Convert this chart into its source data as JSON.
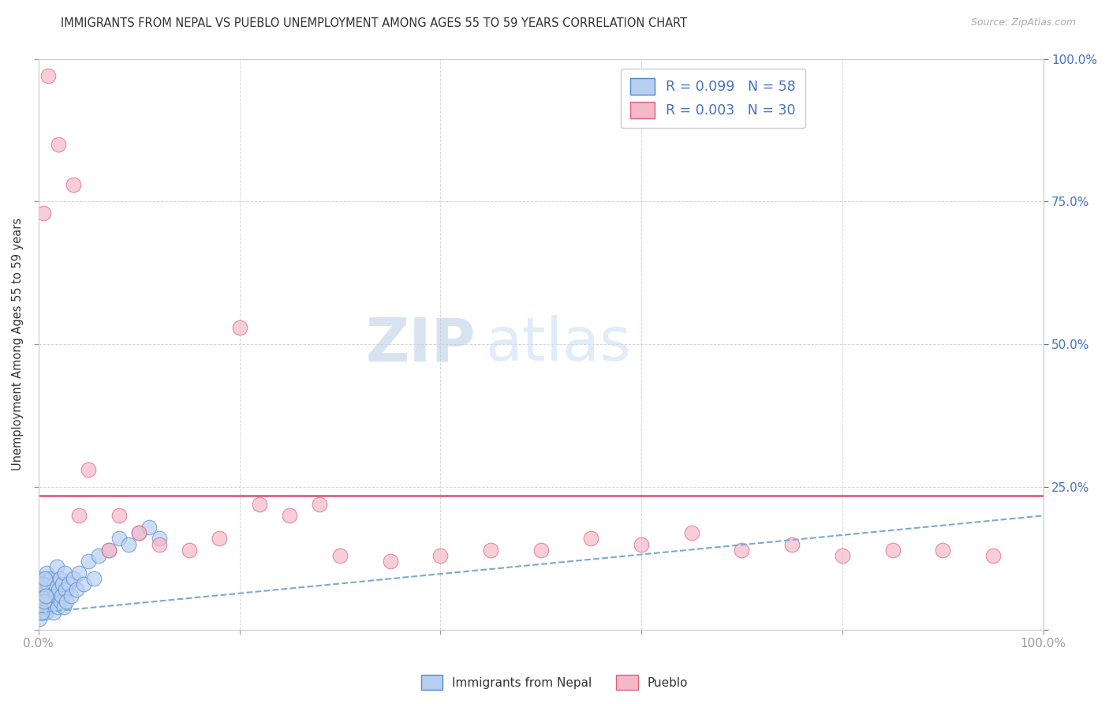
{
  "title": "IMMIGRANTS FROM NEPAL VS PUEBLO UNEMPLOYMENT AMONG AGES 55 TO 59 YEARS CORRELATION CHART",
  "source": "Source: ZipAtlas.com",
  "ylabel": "Unemployment Among Ages 55 to 59 years",
  "xlim": [
    0,
    100
  ],
  "ylim": [
    0,
    100
  ],
  "nepal_R": 0.099,
  "nepal_N": 58,
  "pueblo_R": 0.003,
  "pueblo_N": 30,
  "nepal_color": "#b8d0f0",
  "pueblo_color": "#f5b8c8",
  "nepal_edge_color": "#5588cc",
  "pueblo_edge_color": "#e06080",
  "trend_nepal_color": "#7aaad0",
  "trend_pueblo_color": "#e06080",
  "legend_text_color": "#4472c4",
  "nepal_scatter_x": [
    0.1,
    0.2,
    0.2,
    0.3,
    0.3,
    0.4,
    0.4,
    0.5,
    0.5,
    0.6,
    0.6,
    0.7,
    0.7,
    0.8,
    0.8,
    0.9,
    1.0,
    1.0,
    1.1,
    1.2,
    1.3,
    1.4,
    1.5,
    1.6,
    1.7,
    1.8,
    1.9,
    2.0,
    2.1,
    2.2,
    2.3,
    2.4,
    2.5,
    2.6,
    2.7,
    2.8,
    3.0,
    3.2,
    3.5,
    3.8,
    4.0,
    4.5,
    5.0,
    5.5,
    6.0,
    7.0,
    8.0,
    9.0,
    10.0,
    11.0,
    12.0,
    0.15,
    0.25,
    0.35,
    0.45,
    0.55,
    0.65,
    0.75
  ],
  "nepal_scatter_y": [
    2,
    3,
    5,
    4,
    7,
    6,
    3,
    8,
    5,
    4,
    9,
    6,
    3,
    7,
    10,
    5,
    8,
    4,
    6,
    9,
    5,
    7,
    3,
    8,
    6,
    11,
    4,
    7,
    9,
    5,
    6,
    8,
    4,
    10,
    7,
    5,
    8,
    6,
    9,
    7,
    10,
    8,
    12,
    9,
    13,
    14,
    16,
    15,
    17,
    18,
    16,
    4,
    6,
    3,
    8,
    5,
    9,
    6
  ],
  "pueblo_scatter_x": [
    1.0,
    2.0,
    3.5,
    5.0,
    8.0,
    10.0,
    12.0,
    15.0,
    18.0,
    22.0,
    25.0,
    30.0,
    35.0,
    40.0,
    45.0,
    50.0,
    55.0,
    60.0,
    65.0,
    70.0,
    75.0,
    80.0,
    85.0,
    90.0,
    95.0,
    0.5,
    4.0,
    7.0,
    20.0,
    28.0
  ],
  "pueblo_scatter_y": [
    97,
    85,
    78,
    28,
    20,
    17,
    15,
    14,
    16,
    22,
    20,
    13,
    12,
    13,
    14,
    14,
    16,
    15,
    17,
    14,
    15,
    13,
    14,
    14,
    13,
    73,
    20,
    14,
    53,
    22
  ],
  "nepal_trend_x0": 0,
  "nepal_trend_y0": 3,
  "nepal_trend_x1": 100,
  "nepal_trend_y1": 20,
  "pueblo_trend_y": 23.5,
  "watermark_zip": "ZIP",
  "watermark_atlas": "atlas",
  "grid_color": "#cccccc",
  "background": "#ffffff"
}
